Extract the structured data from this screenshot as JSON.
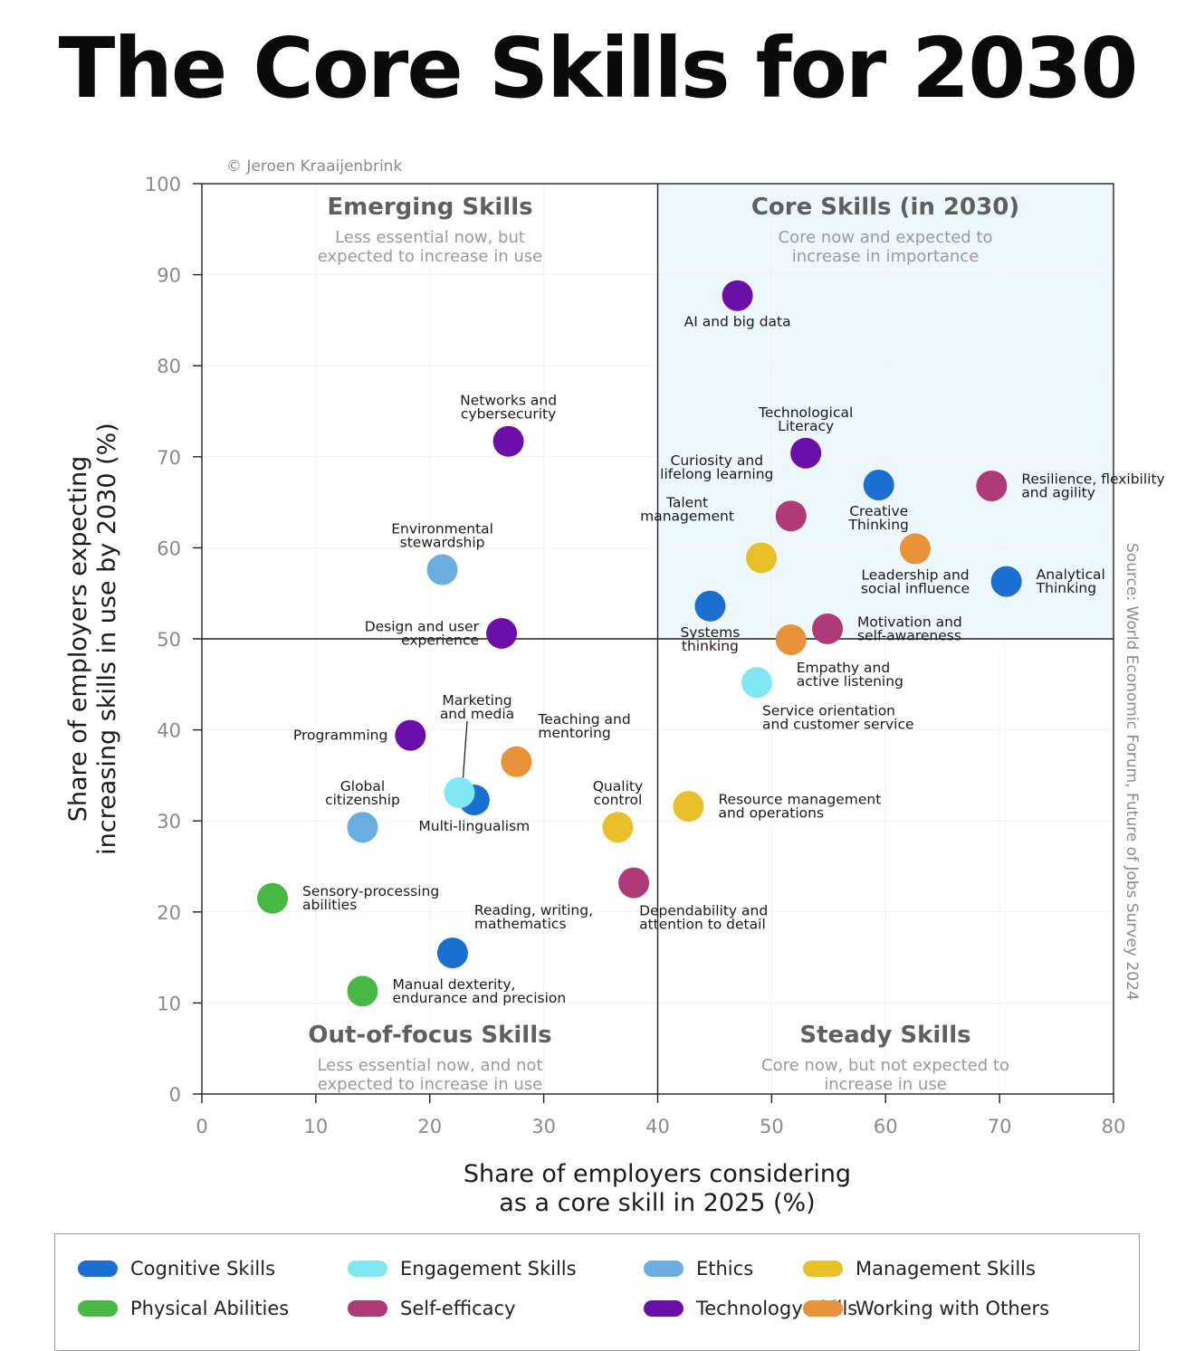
{
  "title": "The Core Skills for 2030",
  "chart_data": {
    "type": "scatter",
    "title": "The Core Skills for 2030",
    "copyright": "© Jeroen Kraaijenbrink",
    "source": "Source: World Economic Forum, Future of Jobs Survey 2024",
    "xlabel": [
      "Share of employers considering",
      "as a core skill in 2025 (%)"
    ],
    "ylabel": [
      "Share of employers expecting",
      "increasing skills in use by 2030 (%)"
    ],
    "xlim": [
      0,
      80
    ],
    "ylim": [
      0,
      100
    ],
    "xticks": [
      0,
      10,
      20,
      30,
      40,
      50,
      60,
      70,
      80
    ],
    "yticks": [
      0,
      10,
      20,
      30,
      40,
      50,
      60,
      70,
      80,
      90,
      100
    ],
    "grid": true,
    "divider": {
      "x": 40,
      "y": 50
    },
    "quadrants": [
      {
        "id": "emerging",
        "title": "Emerging Skills",
        "subtitle": [
          "Less essential now, but",
          "expected to increase in use"
        ]
      },
      {
        "id": "core",
        "title": "Core Skills (in 2030)",
        "subtitle": [
          "Core now and expected to",
          "increase in importance"
        ]
      },
      {
        "id": "out-of-focus",
        "title": "Out-of-focus Skills",
        "subtitle": [
          "Less essential now, and not",
          "expected to increase in use"
        ]
      },
      {
        "id": "steady",
        "title": "Steady Skills",
        "subtitle": [
          "Core now, but not expected to",
          "increase in use"
        ]
      }
    ],
    "categories": [
      {
        "name": "Cognitive Skills",
        "color": "#1a6fd1"
      },
      {
        "name": "Engagement Skills",
        "color": "#7fe8f3"
      },
      {
        "name": "Ethics",
        "color": "#6aaee0"
      },
      {
        "name": "Management Skills",
        "color": "#e8c02a"
      },
      {
        "name": "Physical Abilities",
        "color": "#47b844"
      },
      {
        "name": "Self-efficacy",
        "color": "#b03a78"
      },
      {
        "name": "Technology Skills",
        "color": "#6a0fa8"
      },
      {
        "name": "Working with Others",
        "color": "#e8923a"
      }
    ],
    "points": [
      {
        "label": [
          "AI and big data"
        ],
        "x": 47,
        "y": 87.7,
        "category": "Technology Skills",
        "label_pos": "below"
      },
      {
        "label": [
          "Technological",
          "Literacy"
        ],
        "x": 53,
        "y": 70.4,
        "category": "Technology Skills",
        "label_pos": "above"
      },
      {
        "label": [
          "Creative",
          "Thinking"
        ],
        "x": 59.4,
        "y": 66.9,
        "category": "Cognitive Skills",
        "label_pos": "below"
      },
      {
        "label": [
          "Resilience, flexibility",
          "and agility"
        ],
        "x": 69.3,
        "y": 66.8,
        "category": "Self-efficacy",
        "label_pos": "right"
      },
      {
        "label": [
          "Curiosity and",
          "lifelong learning"
        ],
        "x": 51.7,
        "y": 63.5,
        "category": "Self-efficacy",
        "label_pos": "above-left"
      },
      {
        "label": [
          "Talent",
          "management"
        ],
        "x": 49.1,
        "y": 58.9,
        "category": "Management Skills",
        "label_pos": "above-left"
      },
      {
        "label": [
          "Leadership and",
          "social influence"
        ],
        "x": 62.6,
        "y": 59.9,
        "category": "Working with Others",
        "label_pos": "below"
      },
      {
        "label": [
          "Analytical",
          "Thinking"
        ],
        "x": 70.6,
        "y": 56.3,
        "category": "Cognitive Skills",
        "label_pos": "right"
      },
      {
        "label": [
          "Systems",
          "thinking"
        ],
        "x": 44.6,
        "y": 53.6,
        "category": "Cognitive Skills",
        "label_pos": "below"
      },
      {
        "label": [
          "Motivation and",
          "self-awareness"
        ],
        "x": 54.9,
        "y": 51.1,
        "category": "Self-efficacy",
        "label_pos": "right"
      },
      {
        "label": [
          "Empathy and",
          "active listening"
        ],
        "x": 51.7,
        "y": 49.9,
        "category": "Working with Others",
        "label_pos": "below-right"
      },
      {
        "label": [
          "Service orientation",
          "and customer service"
        ],
        "x": 48.7,
        "y": 45.2,
        "category": "Engagement Skills",
        "label_pos": "below-right"
      },
      {
        "label": [
          "Resource management",
          "and operations"
        ],
        "x": 42.7,
        "y": 31.6,
        "category": "Management Skills",
        "label_pos": "right"
      },
      {
        "label": [
          "Quality",
          "control"
        ],
        "x": 36.5,
        "y": 29.3,
        "category": "Management Skills",
        "label_pos": "above"
      },
      {
        "label": [
          "Dependability and",
          "attention to detail"
        ],
        "x": 37.9,
        "y": 23.2,
        "category": "Self-efficacy",
        "label_pos": "below-right"
      },
      {
        "label": [
          "Networks and",
          "cybersecurity"
        ],
        "x": 26.9,
        "y": 71.7,
        "category": "Technology Skills",
        "label_pos": "above"
      },
      {
        "label": [
          "Environmental",
          "stewardship"
        ],
        "x": 21.1,
        "y": 57.6,
        "category": "Ethics",
        "label_pos": "above"
      },
      {
        "label": [
          "Design and user",
          "experience"
        ],
        "x": 26.3,
        "y": 50.6,
        "category": "Technology Skills",
        "label_pos": "left"
      },
      {
        "label": [
          "Programming"
        ],
        "x": 18.3,
        "y": 39.4,
        "category": "Technology Skills",
        "label_pos": "left"
      },
      {
        "label": [
          "Teaching and",
          "mentoring"
        ],
        "x": 27.6,
        "y": 36.5,
        "category": "Working with Others",
        "label_pos": "above-right"
      },
      {
        "label": [
          "Multi-lingualism"
        ],
        "x": 23.9,
        "y": 32.3,
        "category": "Cognitive Skills",
        "label_pos": "below"
      },
      {
        "label": [
          "Marketing",
          "and media"
        ],
        "x": 22.6,
        "y": 33.1,
        "category": "Engagement Skills",
        "label_pos": "above-leader"
      },
      {
        "label": [
          "Global",
          "citizenship"
        ],
        "x": 14.1,
        "y": 29.3,
        "category": "Ethics",
        "label_pos": "above"
      },
      {
        "label": [
          "Sensory-processing",
          "abilities"
        ],
        "x": 6.2,
        "y": 21.5,
        "category": "Physical Abilities",
        "label_pos": "right"
      },
      {
        "label": [
          "Reading, writing,",
          "mathematics"
        ],
        "x": 22,
        "y": 15.5,
        "category": "Cognitive Skills",
        "label_pos": "above-right"
      },
      {
        "label": [
          "Manual dexterity,",
          "endurance and precision"
        ],
        "x": 14.1,
        "y": 11.3,
        "category": "Physical Abilities",
        "label_pos": "right"
      }
    ]
  }
}
